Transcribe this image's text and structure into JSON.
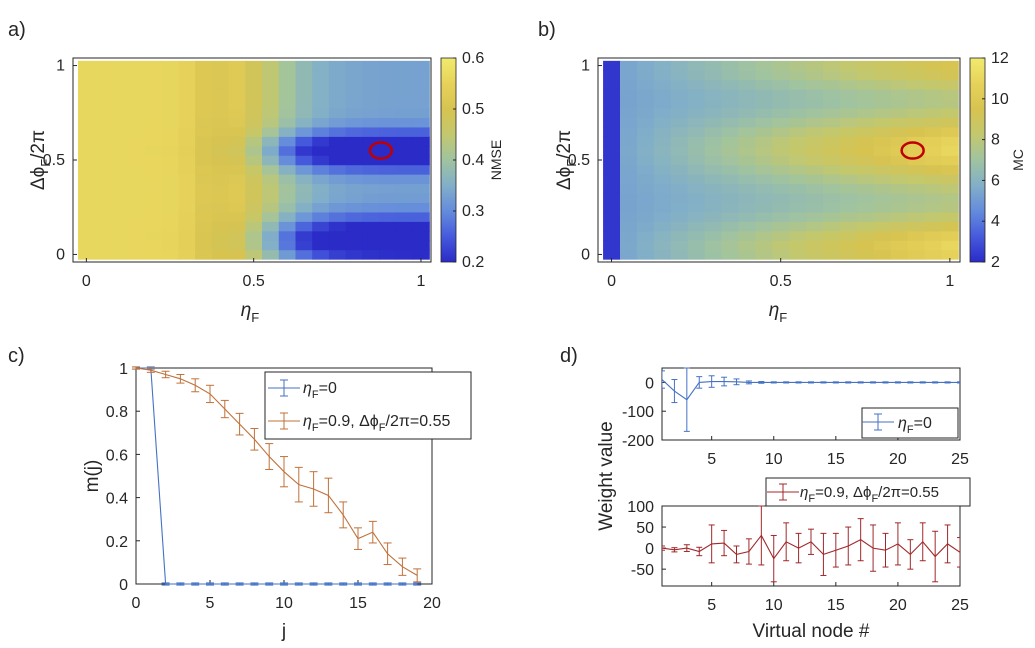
{
  "chart_data": [
    {
      "panel": "a)",
      "type": "heatmap",
      "xlabel_symbol": "η",
      "xlabel_sub": "F",
      "ylabel_prefix": "Δϕ",
      "ylabel_sub": "F",
      "ylabel_suffix": "/2π",
      "xlim": [
        -0.04,
        1.03
      ],
      "ylim": [
        -0.04,
        1.04
      ],
      "xticks": [
        0,
        0.5,
        1
      ],
      "xtick_labels": [
        "0",
        "0.5",
        "1"
      ],
      "yticks": [
        0,
        0.5,
        1
      ],
      "ytick_labels": [
        "0",
        "0.5",
        "1"
      ],
      "colorbar": {
        "label": "NMSE",
        "min": 0.2,
        "max": 0.6,
        "ticks": [
          0.2,
          0.3,
          0.4,
          0.5,
          0.6
        ],
        "tick_labels": [
          "0.2",
          "0.3",
          "0.4",
          "0.5",
          "0.6"
        ]
      },
      "grid": {
        "nx": 21,
        "ny": 21,
        "x_range": [
          0,
          1
        ],
        "y_range": [
          0,
          1
        ],
        "description": "NMSE ~0.55 for eta_F < 0.4; minima (~0.2) near dphi/2pi = 0.08 and 0.55 for eta_F > 0.6"
      },
      "marker": {
        "x": 0.88,
        "y": 0.55,
        "color": "#c00000"
      }
    },
    {
      "panel": "b)",
      "type": "heatmap",
      "xlabel_symbol": "η",
      "xlabel_sub": "F",
      "ylabel_prefix": "Δϕ",
      "ylabel_sub": "F",
      "ylabel_suffix": "/2π",
      "xlim": [
        -0.04,
        1.03
      ],
      "ylim": [
        -0.04,
        1.04
      ],
      "xticks": [
        0,
        0.5,
        1
      ],
      "xtick_labels": [
        "0",
        "0.5",
        "1"
      ],
      "yticks": [
        0,
        0.5,
        1
      ],
      "ytick_labels": [
        "0",
        "0.5",
        "1"
      ],
      "colorbar": {
        "label": "MC",
        "min": 2,
        "max": 12,
        "ticks": [
          2,
          4,
          6,
          8,
          10,
          12
        ],
        "tick_labels": [
          "2",
          "4",
          "6",
          "8",
          "10",
          "12"
        ]
      },
      "grid": {
        "nx": 21,
        "ny": 21,
        "x_range": [
          0,
          1
        ],
        "y_range": [
          0,
          1
        ],
        "description": "MC ~2 at eta_F = 0, rising to ~11 near dphi/2pi = 0.55 and ~0.05 for eta_F > 0.8"
      },
      "marker": {
        "x": 0.89,
        "y": 0.55,
        "color": "#c00000"
      }
    },
    {
      "panel": "c)",
      "type": "line",
      "xlabel": "j",
      "ylabel": "m(j)",
      "xlim": [
        0,
        20
      ],
      "ylim": [
        0,
        1
      ],
      "xticks": [
        0,
        5,
        10,
        15,
        20
      ],
      "xtick_labels": [
        "0",
        "5",
        "10",
        "15",
        "20"
      ],
      "yticks": [
        0,
        0.2,
        0.4,
        0.6,
        0.8,
        1
      ],
      "ytick_labels": [
        "0",
        "0.2",
        "0.4",
        "0.6",
        "0.8",
        "1"
      ],
      "series": [
        {
          "name_symbol": "η",
          "name_sub": "F",
          "name_rest": "=0",
          "color": "#4472c4",
          "x": [
            0,
            1,
            2,
            3,
            4,
            5,
            6,
            7,
            8,
            9,
            10,
            11,
            12,
            13,
            14,
            15,
            16,
            17,
            18,
            19
          ],
          "y": [
            1.0,
            1.0,
            0,
            0,
            0,
            0,
            0,
            0,
            0,
            0,
            0,
            0,
            0,
            0,
            0,
            0,
            0,
            0,
            0,
            0
          ],
          "err": [
            0.005,
            0.005,
            0.005,
            0.005,
            0.005,
            0.005,
            0.005,
            0.005,
            0.005,
            0.005,
            0.005,
            0.005,
            0.005,
            0.005,
            0.005,
            0.005,
            0.005,
            0.005,
            0.005,
            0.005
          ]
        },
        {
          "name_symbol": "η",
          "name_sub": "F",
          "name_rest": "=0.9, ",
          "name_symbol2": "Δϕ",
          "name_sub2": "F",
          "name_rest2": "/2π=0.55",
          "color": "#c0713a",
          "x": [
            0,
            1,
            2,
            3,
            4,
            5,
            6,
            7,
            8,
            9,
            10,
            11,
            12,
            13,
            14,
            15,
            16,
            17,
            18,
            19
          ],
          "y": [
            1.0,
            0.99,
            0.97,
            0.95,
            0.92,
            0.88,
            0.81,
            0.74,
            0.67,
            0.59,
            0.52,
            0.46,
            0.44,
            0.41,
            0.32,
            0.21,
            0.24,
            0.14,
            0.08,
            0.04
          ],
          "err": [
            0.005,
            0.01,
            0.015,
            0.02,
            0.03,
            0.04,
            0.04,
            0.05,
            0.05,
            0.06,
            0.07,
            0.08,
            0.08,
            0.08,
            0.06,
            0.05,
            0.05,
            0.05,
            0.04,
            0.03
          ]
        }
      ]
    },
    {
      "panel": "d)",
      "type": "line",
      "xlabel": "Virtual node #",
      "ylabel": "Weight value",
      "subplots": [
        {
          "ylim": [
            -200,
            50
          ],
          "yticks": [
            0,
            -100,
            -200
          ],
          "ytick_labels": [
            "0",
            "-100",
            "-200"
          ],
          "xlim": [
            1,
            25
          ],
          "xticks": [
            5,
            10,
            15,
            20,
            25
          ],
          "xtick_labels": [
            "5",
            "10",
            "15",
            "20",
            "25"
          ],
          "series": [
            {
              "name_symbol": "η",
              "name_sub": "F",
              "name_rest": "=0",
              "color": "#4472c4",
              "x": [
                1,
                2,
                3,
                4,
                5,
                6,
                7,
                8,
                9,
                10,
                11,
                12,
                13,
                14,
                15,
                16,
                17,
                18,
                19,
                20,
                21,
                22,
                23,
                24,
                25
              ],
              "y": [
                10,
                -30,
                -60,
                0,
                3,
                3,
                2,
                0,
                0,
                0,
                0,
                0,
                0,
                0,
                0,
                0,
                0,
                0,
                0,
                0,
                0,
                0,
                0,
                0,
                0
              ],
              "err": [
                30,
                40,
                110,
                20,
                20,
                15,
                10,
                5,
                3,
                2,
                2,
                2,
                2,
                2,
                2,
                2,
                2,
                2,
                2,
                2,
                2,
                2,
                2,
                2,
                2
              ]
            }
          ]
        },
        {
          "ylim": [
            -90,
            100
          ],
          "yticks": [
            -50,
            0,
            50,
            100
          ],
          "ytick_labels": [
            "-50",
            "0",
            "50",
            "100"
          ],
          "xlim": [
            1,
            25
          ],
          "xticks": [
            5,
            10,
            15,
            20,
            25
          ],
          "xtick_labels": [
            "5",
            "10",
            "15",
            "20",
            "25"
          ],
          "series": [
            {
              "name_symbol": "η",
              "name_sub": "F",
              "name_rest": "=0.9, ",
              "name_symbol2": "Δϕ",
              "name_sub2": "F",
              "name_rest2": "/2π=0.55",
              "color": "#a0282a",
              "x": [
                1,
                2,
                3,
                4,
                5,
                6,
                7,
                8,
                9,
                10,
                11,
                12,
                13,
                14,
                15,
                16,
                17,
                18,
                19,
                20,
                21,
                22,
                23,
                24,
                25
              ],
              "y": [
                0,
                -4,
                0,
                -8,
                10,
                12,
                -15,
                -8,
                30,
                -25,
                15,
                0,
                15,
                -15,
                -5,
                5,
                20,
                0,
                -5,
                10,
                -15,
                15,
                -20,
                10,
                -10
              ],
              "err": [
                5,
                5,
                8,
                10,
                45,
                30,
                20,
                30,
                70,
                55,
                45,
                35,
                30,
                50,
                40,
                45,
                50,
                55,
                40,
                50,
                35,
                45,
                60,
                45,
                35
              ]
            }
          ]
        }
      ]
    }
  ]
}
